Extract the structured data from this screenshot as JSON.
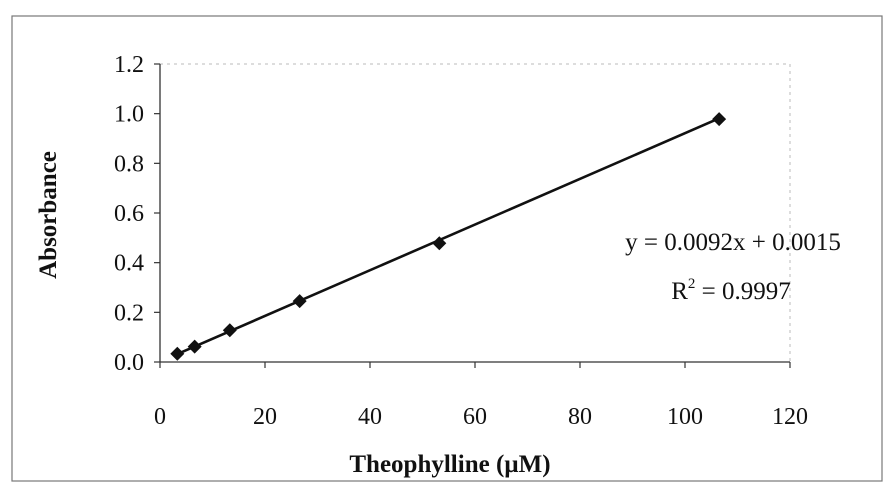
{
  "chart_data": {
    "type": "scatter",
    "title": "",
    "xlabel": "Theophylline (µM)",
    "ylabel": "Absorbance",
    "xlim": [
      0,
      120
    ],
    "ylim": [
      0.0,
      1.2
    ],
    "xticks": [
      "0",
      "20",
      "40",
      "60",
      "80",
      "100",
      "120"
    ],
    "yticks": [
      "0.0",
      "0.2",
      "0.4",
      "0.6",
      "0.8",
      "1.0",
      "1.2"
    ],
    "series": [
      {
        "x": [
          3.3,
          6.6,
          13.3,
          26.6,
          53.2,
          106.5
        ],
        "y": [
          0.033,
          0.062,
          0.128,
          0.245,
          0.478,
          0.978
        ],
        "marker": "diamond",
        "color": "#111111"
      }
    ],
    "trendline": {
      "type": "linear",
      "slope": 0.0092,
      "intercept": 0.0015,
      "x_range": [
        3.3,
        106.5
      ],
      "equation": "y = 0.0092x + 0.0015",
      "r2_prefix": "R",
      "r2_exponent": "2",
      "r2_suffix": " = 0.9997"
    },
    "grid": false,
    "legend": "none"
  }
}
